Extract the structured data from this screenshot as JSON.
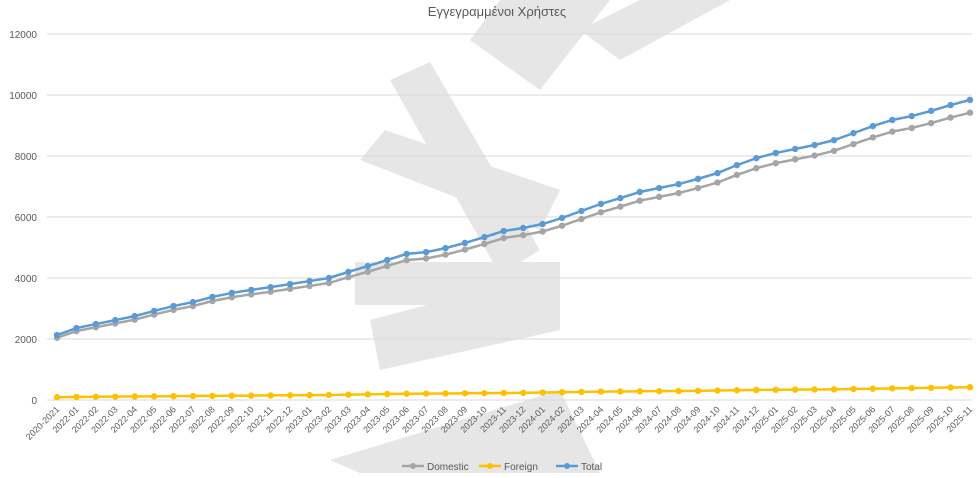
{
  "chart_data": {
    "type": "line",
    "title": "Εγγεγραμμένοι Χρήστες",
    "xlabel": "",
    "ylabel": "",
    "ylim": [
      0,
      12000
    ],
    "yticks": [
      0,
      2000,
      4000,
      6000,
      8000,
      10000,
      12000
    ],
    "grid": true,
    "legend_position": "bottom",
    "categories": [
      "2020-2021",
      "2022-01",
      "2022-02",
      "2022-03",
      "2022-04",
      "2022-05",
      "2022-06",
      "2022-07",
      "2022-08",
      "2022-09",
      "2022-10",
      "2022-11",
      "2022-12",
      "2023-01",
      "2023-02",
      "2023-03",
      "2023-04",
      "2023-05",
      "2023-06",
      "2023-07",
      "2023-08",
      "2023-09",
      "2023-10",
      "2023-11",
      "2023-12",
      "2024-01",
      "2024-02",
      "2024-03",
      "2024-04",
      "2024-05",
      "2024-06",
      "2024-07",
      "2024-08",
      "2024-09",
      "2024-10",
      "2024-11",
      "2024-12",
      "2025-01",
      "2025-02",
      "2025-03",
      "2025-04",
      "2025-05",
      "2025-06",
      "2025-07",
      "2025-08",
      "2025-09",
      "2025-10",
      "2025-11"
    ],
    "series": [
      {
        "name": "Domestic",
        "color": "#a5a5a5",
        "values": [
          2040,
          2260,
          2385,
          2510,
          2635,
          2800,
          2955,
          3080,
          3245,
          3370,
          3465,
          3550,
          3645,
          3740,
          3835,
          4025,
          4205,
          4395,
          4585,
          4640,
          4765,
          4930,
          5115,
          5310,
          5405,
          5525,
          5715,
          5935,
          6155,
          6340,
          6535,
          6660,
          6785,
          6950,
          7130,
          7380,
          7600,
          7765,
          7890,
          8015,
          8170,
          8390,
          8610,
          8800,
          8920,
          9080,
          9260,
          9420
        ]
      },
      {
        "name": "Foreign",
        "color": "#ffc000",
        "values": [
          90,
          100,
          105,
          110,
          115,
          120,
          125,
          130,
          135,
          140,
          145,
          150,
          155,
          160,
          165,
          175,
          185,
          195,
          205,
          210,
          215,
          220,
          225,
          230,
          235,
          245,
          255,
          265,
          275,
          280,
          285,
          290,
          295,
          300,
          310,
          320,
          330,
          335,
          340,
          345,
          350,
          360,
          370,
          380,
          390,
          400,
          410,
          420
        ]
      },
      {
        "name": "Total",
        "color": "#5b9bd5",
        "values": [
          2130,
          2360,
          2490,
          2620,
          2750,
          2920,
          3080,
          3210,
          3380,
          3510,
          3610,
          3700,
          3800,
          3900,
          4000,
          4200,
          4390,
          4590,
          4790,
          4850,
          4980,
          5150,
          5340,
          5540,
          5640,
          5770,
          5970,
          6200,
          6430,
          6620,
          6820,
          6950,
          7080,
          7250,
          7440,
          7700,
          7930,
          8100,
          8230,
          8360,
          8520,
          8750,
          8980,
          9180,
          9310,
          9480,
          9670,
          9840
        ]
      }
    ]
  }
}
